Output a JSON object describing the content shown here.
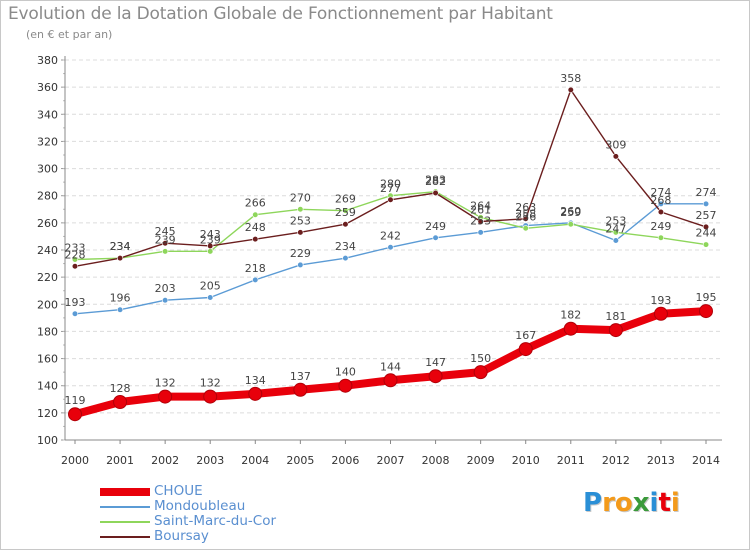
{
  "chart_data": {
    "type": "line",
    "title": "Evolution de la Dotation Globale de Fonctionnement par Habitant",
    "subtitle": "(en € et par an)",
    "xlabel": "",
    "ylabel": "",
    "ylim": [
      100,
      380
    ],
    "y_ticks": [
      100,
      120,
      140,
      160,
      180,
      200,
      220,
      240,
      260,
      280,
      300,
      320,
      340,
      360,
      380
    ],
    "x": [
      "2000",
      "2001",
      "2002",
      "2003",
      "2004",
      "2005",
      "2006",
      "2007",
      "2008",
      "2009",
      "2010",
      "2011",
      "2012",
      "2013",
      "2014"
    ],
    "legend_position": "bottom-left",
    "series": [
      {
        "name": "CHOUE",
        "color": "#e8000b",
        "values": [
          119,
          128,
          132,
          132,
          134,
          137,
          140,
          144,
          147,
          150,
          167,
          182,
          181,
          193,
          195
        ]
      },
      {
        "name": "Mondoubleau",
        "color": "#5b9bd5",
        "values": [
          193,
          196,
          203,
          205,
          218,
          229,
          234,
          242,
          249,
          253,
          258,
          260,
          247,
          274,
          274
        ]
      },
      {
        "name": "Saint-Marc-du-Cor",
        "color": "#8ed65b",
        "values": [
          233,
          234,
          239,
          239,
          266,
          270,
          269,
          280,
          283,
          264,
          256,
          259,
          253,
          249,
          244
        ]
      },
      {
        "name": "Boursay",
        "color": "#6b1e1e",
        "values": [
          228,
          234,
          245,
          243,
          248,
          253,
          259,
          277,
          282,
          261,
          263,
          358,
          309,
          268,
          257
        ]
      }
    ]
  },
  "logo": {
    "p": "P",
    "ro": "ro",
    "x": "x",
    "i1": "i",
    "t": "t",
    "i2": "i"
  },
  "logo_colors": {
    "p": "#2a8fd6",
    "ro": "#f39a1b",
    "x": "#3a9a3a",
    "i1": "#2a8fd6",
    "t": "#e8000b",
    "i2": "#f39a1b"
  }
}
